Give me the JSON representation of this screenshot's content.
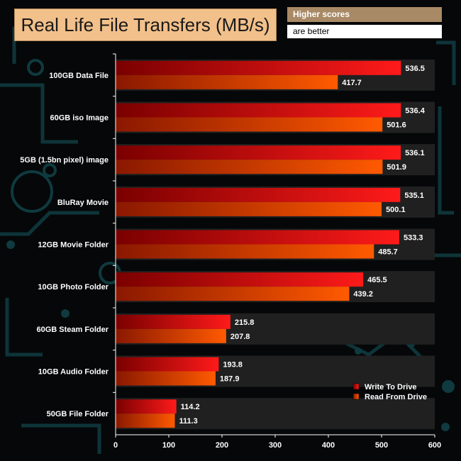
{
  "header": {
    "note_line1": "Higher scores",
    "note_line2": "are better"
  },
  "colors": {
    "write_dark": "#7a0000",
    "write_light": "#ff1a1a",
    "read_dark": "#8a1800",
    "read_light": "#ff5a00",
    "panel": "#202020",
    "title_bg": "#f2c08a"
  },
  "chart_data": {
    "type": "bar",
    "orientation": "horizontal",
    "title": "Real Life File Transfers (MB/s)",
    "xlabel": "",
    "ylabel": "",
    "xlim": [
      0,
      600
    ],
    "xticks": [
      0,
      100,
      200,
      300,
      400,
      500,
      600
    ],
    "categories": [
      "100GB Data File",
      "60GB iso Image",
      "5GB (1.5bn pixel) image",
      "BluRay Movie",
      "12GB Movie Folder",
      "10GB Photo Folder",
      "60GB Steam Folder",
      "10GB Audio Folder",
      "50GB File Folder"
    ],
    "series": [
      {
        "name": "Write To  Drive",
        "values": [
          536.5,
          536.4,
          536.1,
          535.1,
          533.3,
          465.5,
          215.8,
          193.8,
          114.2
        ]
      },
      {
        "name": "Read From  Drive",
        "values": [
          417.7,
          501.6,
          501.9,
          500.1,
          485.7,
          439.2,
          207.8,
          187.9,
          111.3
        ]
      }
    ],
    "legend_position": "bottom-right"
  }
}
